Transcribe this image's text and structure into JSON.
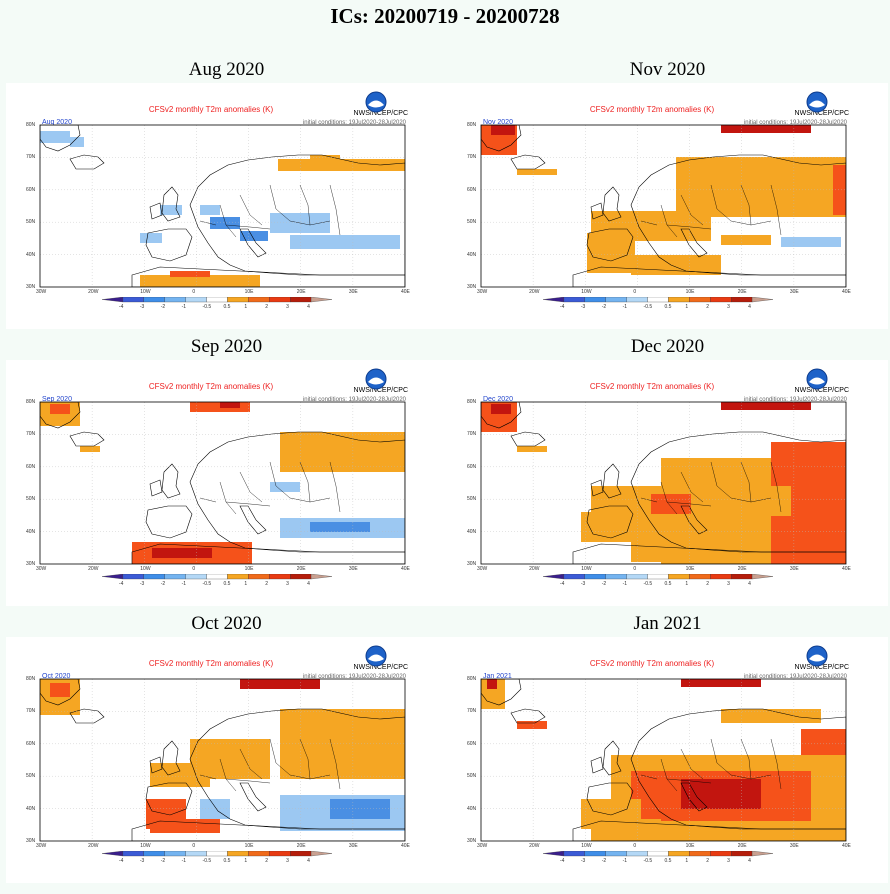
{
  "page": {
    "title": "ICs: 20200719 - 20200728"
  },
  "common": {
    "plot_title": "CFSv2 monthly T2m anomalies (K)",
    "agency": "NWS/NCEP/CPC",
    "ic_text": "initial conditions: 19Jul2020-28Jul2020",
    "lat_labels": [
      "80N",
      "70N",
      "60N",
      "50N",
      "40N",
      "30N"
    ],
    "lon_labels": [
      "30W",
      "20W",
      "10W",
      "0",
      "10E",
      "20E",
      "30E",
      "40E"
    ],
    "colorbar": {
      "labels": [
        "-4",
        "-3",
        "-2",
        "-1",
        "-0.5",
        "0.5",
        "1",
        "2",
        "3",
        "4"
      ],
      "colors": [
        "#3a1e8c",
        "#3b5bd6",
        "#3f8ee8",
        "#74b4f0",
        "#b4d8f6",
        "#ffffff",
        "#f5a623",
        "#f06a1a",
        "#e83a12",
        "#b51d0b",
        "#c9a090"
      ]
    },
    "colors": {
      "warm_light": "#f5a623",
      "warm_mid": "#f5521a",
      "warm_dark": "#c2150f",
      "cool_light": "#9cc8f2",
      "cool_mid": "#4a8fe3",
      "land_edge": "#000000",
      "grid": "#bbbbbb"
    }
  },
  "panels": [
    {
      "id": "aug",
      "month_title": "Aug 2020",
      "map_label": "Aug 2020"
    },
    {
      "id": "nov",
      "month_title": "Nov 2020",
      "map_label": "Nov 2020"
    },
    {
      "id": "sep",
      "month_title": "Sep 2020",
      "map_label": "Sep 2020"
    },
    {
      "id": "dec",
      "month_title": "Dec 2020",
      "map_label": "Dec 2020"
    },
    {
      "id": "oct",
      "month_title": "Oct 2020",
      "map_label": "Oct 2020"
    },
    {
      "id": "jan",
      "month_title": "Jan 2021",
      "map_label": "Jan 2021"
    }
  ]
}
